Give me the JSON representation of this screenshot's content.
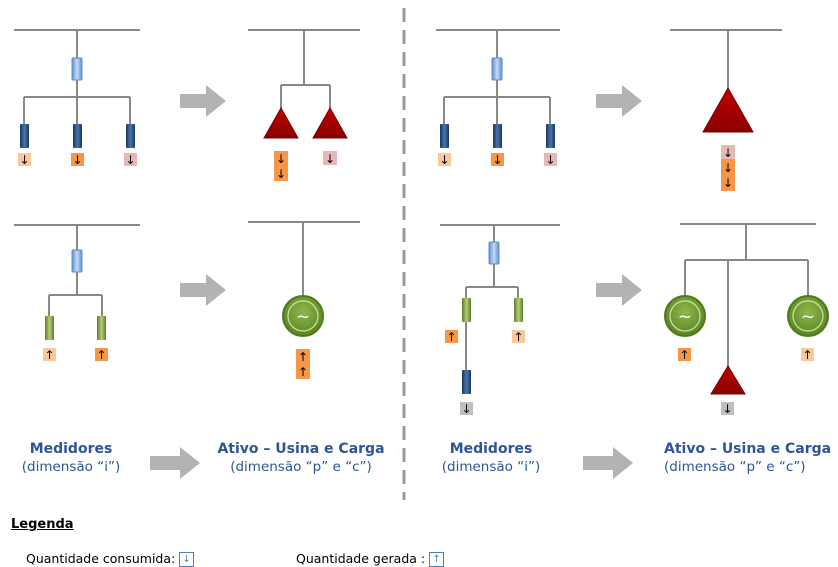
{
  "labels": {
    "meters_left": {
      "title": "Medidores",
      "subtitle": "(dimensão “i”)"
    },
    "asset_left": {
      "title": "Ativo – Usina  e Carga",
      "subtitle": "(dimensão “p” e “c”)"
    },
    "meters_right": {
      "title": "Medidores",
      "subtitle": "(dimensão “i”)"
    },
    "asset_right": {
      "title": "Ativo – Usina  e Carga",
      "subtitle": "(dimensão “p” e “c”)"
    }
  },
  "legend": {
    "title": "Legenda",
    "consumed_label": "Quantidade consumida:",
    "generated_label": "Quantidade gerada :",
    "consumed_icon": "arrow-down-icon",
    "generated_icon": "arrow-up-icon"
  },
  "symbols": {
    "generator": "~",
    "arrow_down": "↓",
    "arrow_up": "↑"
  },
  "colors": {
    "line": "#888888",
    "meter_fuse": "#8eb4e3",
    "meter_dark": "#1f497d",
    "meter_green": "#77933c",
    "load_triangle": "#b00000",
    "generator": "#6a9a2e",
    "tag_orange": "#f79646",
    "tag_pink": "#e6b9b8",
    "process_arrow": "#b3b3b3",
    "text_blue": "#2e5597"
  }
}
